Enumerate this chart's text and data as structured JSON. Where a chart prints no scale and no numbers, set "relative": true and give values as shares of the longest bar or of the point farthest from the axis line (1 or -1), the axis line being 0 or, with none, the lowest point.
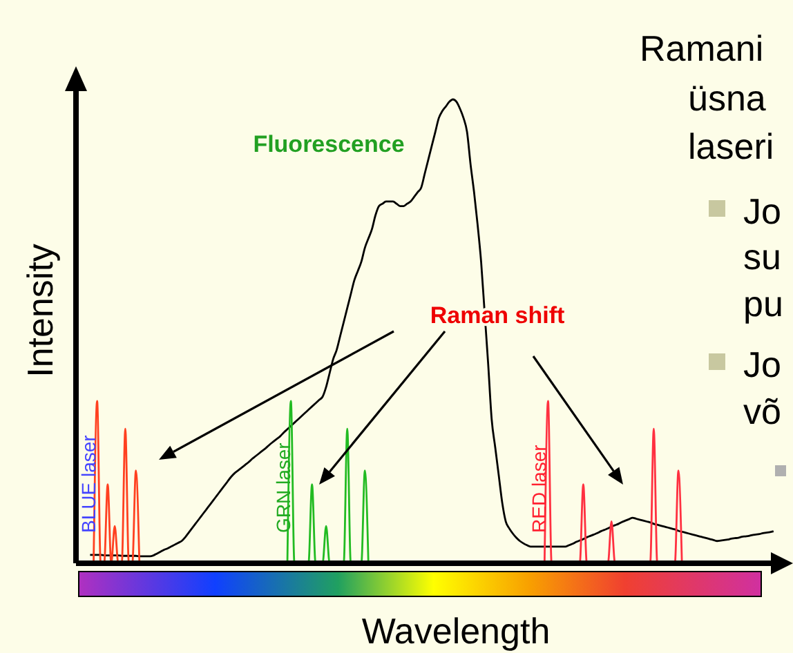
{
  "chart_data": {
    "type": "line",
    "relative": true,
    "xlabel": "Wavelength",
    "ylabel": "Intensity",
    "annotations": [
      "Fluorescence",
      "Raman shift",
      "BLUE laser",
      "GRN laser",
      "RED laser",
      "Ramani",
      "üsna",
      "laseri",
      "Jo",
      "su",
      "pu",
      "Jo",
      "võ"
    ],
    "categories": [
      null,
      null,
      null,
      null,
      null,
      null,
      null,
      null,
      null,
      null,
      null,
      null,
      null,
      null,
      null,
      null,
      null,
      null,
      null,
      null,
      null,
      null,
      null,
      null,
      null,
      null,
      null,
      null,
      null,
      null,
      null,
      null,
      null,
      null,
      null,
      null,
      null,
      null,
      null,
      null,
      null,
      null,
      null,
      null,
      null,
      null,
      null,
      null,
      null,
      null,
      null,
      null,
      null,
      null,
      null,
      null,
      null,
      null,
      null,
      null,
      null,
      null,
      null,
      null,
      null,
      null,
      null,
      null,
      null,
      null,
      null,
      null,
      null,
      null,
      null,
      null,
      null,
      null,
      null,
      null,
      null,
      null,
      null,
      null,
      null,
      null,
      null,
      null,
      null,
      null,
      null,
      null,
      null,
      null,
      null,
      null,
      null,
      null,
      null,
      null,
      null,
      null,
      null,
      null,
      null,
      null,
      null,
      null,
      null,
      null,
      null,
      null,
      null,
      null,
      null,
      null,
      null,
      null,
      null,
      null,
      null,
      null,
      null,
      null,
      null,
      null,
      null,
      null,
      null,
      null,
      null,
      null,
      null,
      null,
      null,
      null,
      null,
      null,
      null,
      null,
      null,
      null,
      null,
      null,
      null,
      null,
      null,
      null,
      null,
      null,
      null,
      null,
      null,
      null,
      null,
      null,
      null,
      null,
      null,
      null,
      null,
      null,
      null,
      null,
      null,
      null,
      null,
      null,
      null,
      null,
      null,
      null,
      null,
      null,
      null,
      null,
      null,
      null,
      null,
      null,
      null,
      null,
      null,
      null,
      null,
      null,
      null,
      null,
      null,
      null,
      null,
      null,
      null,
      null,
      null,
      null,
      null,
      null,
      null,
      null,
      null
    ],
    "series": [
      {
        "color": "#000000",
        "values": [
          null,
          null,
          null,
          null,
          0.018,
          0.018,
          0.018,
          0.018,
          0.017,
          0.017,
          0.017,
          0.017,
          0.017,
          0.016,
          0.016,
          0.016,
          0.016,
          0.016,
          0.015,
          0.015,
          0.015,
          0.015,
          0.017,
          0.021,
          0.025,
          0.029,
          0.032,
          0.036,
          0.04,
          0.044,
          0.048,
          0.056,
          0.066,
          0.076,
          0.086,
          0.096,
          0.106,
          0.116,
          0.126,
          0.136,
          0.146,
          0.156,
          0.166,
          0.176,
          0.186,
          0.194,
          0.2,
          0.206,
          0.212,
          0.218,
          0.225,
          0.231,
          0.237,
          0.243,
          0.249,
          0.256,
          0.262,
          0.268,
          0.274,
          0.282,
          0.289,
          0.296,
          0.303,
          0.31,
          0.317,
          0.324,
          0.331,
          0.338,
          0.345,
          0.352,
          0.359,
          0.38,
          0.41,
          0.44,
          0.46,
          0.49,
          0.52,
          0.55,
          0.58,
          0.61,
          0.63,
          0.65,
          0.68,
          0.7,
          0.72,
          0.75,
          0.77,
          0.775,
          0.78,
          0.78,
          0.78,
          0.775,
          0.77,
          0.77,
          0.775,
          0.78,
          0.79,
          0.8,
          0.81,
          0.84,
          0.87,
          0.9,
          0.93,
          0.96,
          0.975,
          0.985,
          0.995,
          1,
          0.995,
          0.98,
          0.96,
          0.93,
          0.86,
          0.8,
          0.73,
          0.65,
          0.54,
          0.43,
          0.31,
          0.25,
          0.19,
          0.13,
          0.09,
          0.075,
          0.064,
          0.055,
          0.048,
          0.043,
          0.039,
          0.036,
          0.036,
          0.036,
          0.036,
          0.036,
          0.036,
          0.036,
          0.036,
          0.036,
          0.036,
          0.036,
          0.039,
          0.042,
          0.046,
          0.049,
          0.052,
          0.056,
          0.059,
          0.062,
          0.065,
          0.069,
          0.072,
          0.075,
          0.079,
          0.082,
          0.085,
          0.089,
          0.092,
          0.095,
          0.098,
          0.096,
          0.094,
          0.092,
          0.09,
          0.088,
          0.085,
          0.083,
          0.081,
          0.079,
          0.077,
          0.075,
          0.073,
          0.07,
          0.068,
          0.066,
          0.064,
          0.062,
          0.06,
          0.058,
          0.056,
          0.054,
          0.052,
          0.05,
          0.048,
          0.049,
          0.05,
          0.051,
          0.053,
          0.054,
          0.055,
          0.057,
          0.058,
          0.059,
          0.061,
          0.062,
          0.063,
          0.065,
          0.066,
          0.067,
          0.069,
          null,
          null
        ]
      },
      {
        "color": "#ff4020",
        "values": [
          null,
          null,
          null,
          null,
          null,
          0,
          0.35,
          0,
          0,
          0.17,
          0,
          0.08,
          0,
          0,
          0.29,
          0,
          0,
          0.2,
          0,
          null,
          null,
          null,
          null,
          null,
          null,
          null,
          null,
          null,
          null,
          null,
          null,
          null,
          null,
          null,
          null,
          null,
          null,
          null,
          null,
          null,
          null,
          null,
          null,
          null,
          null,
          null,
          null,
          null,
          null,
          null,
          null,
          null,
          null,
          null,
          null,
          null,
          null,
          null,
          null,
          null,
          null,
          null,
          null,
          null,
          null,
          null,
          null,
          null,
          null,
          null,
          null,
          null,
          null,
          null,
          null,
          null,
          null,
          null,
          null,
          null,
          null,
          null,
          null,
          null,
          null,
          null,
          null,
          null,
          null,
          null,
          null,
          null,
          null,
          null,
          null,
          null,
          null,
          null,
          null,
          null,
          null,
          null,
          null,
          null,
          null,
          null,
          null,
          null,
          null,
          null,
          null,
          null,
          null,
          null,
          null,
          null,
          null,
          null,
          null,
          null,
          null,
          null,
          null,
          null,
          null,
          null,
          null,
          null,
          null,
          null,
          null,
          null,
          null,
          null,
          null,
          null,
          null,
          null,
          null,
          null,
          null,
          null,
          null,
          null,
          null,
          null,
          null,
          null,
          null,
          null,
          null,
          null,
          null,
          null,
          null,
          null,
          null,
          null,
          null,
          null,
          null,
          null,
          null,
          null,
          null,
          null,
          null,
          null,
          null,
          null,
          null,
          null,
          null,
          null,
          null,
          null,
          null,
          null,
          null,
          null,
          null,
          null,
          null,
          null,
          null,
          null,
          null,
          null,
          null,
          null,
          null,
          null,
          null,
          null,
          null,
          null,
          null,
          null,
          null,
          null,
          null
        ]
      },
      {
        "color": "#22bb22",
        "values": [
          null,
          null,
          null,
          null,
          null,
          null,
          null,
          null,
          null,
          null,
          null,
          null,
          null,
          null,
          null,
          null,
          null,
          null,
          null,
          null,
          null,
          null,
          null,
          null,
          null,
          null,
          null,
          null,
          null,
          null,
          null,
          null,
          null,
          null,
          null,
          null,
          null,
          null,
          null,
          null,
          null,
          null,
          null,
          null,
          null,
          null,
          null,
          null,
          null,
          null,
          null,
          null,
          null,
          null,
          null,
          null,
          null,
          null,
          null,
          null,
          0,
          0.35,
          0,
          0,
          0,
          0,
          0,
          0.17,
          0,
          0,
          0,
          0.08,
          0,
          0,
          0,
          0,
          0,
          0.29,
          0,
          0,
          0,
          0,
          0.2,
          0,
          null,
          null,
          null,
          null,
          null,
          null,
          null,
          null,
          null,
          null,
          null,
          null,
          null,
          null,
          null,
          null,
          null,
          null,
          null,
          null,
          null,
          null,
          null,
          null,
          null,
          null,
          null,
          null,
          null,
          null,
          null,
          null,
          null,
          null,
          null,
          null,
          null,
          null,
          null,
          null,
          null,
          null,
          null,
          null,
          null,
          null,
          null,
          null,
          null,
          null,
          null,
          null,
          null,
          null,
          null,
          null,
          null,
          null,
          null,
          null,
          null,
          null,
          null,
          null,
          null,
          null,
          null,
          null,
          null,
          null,
          null,
          null,
          null,
          null,
          null,
          null,
          null,
          null,
          null,
          null,
          null,
          null,
          null,
          null,
          null,
          null,
          null,
          null,
          null,
          null,
          null,
          null,
          null,
          null,
          null,
          null,
          null,
          null,
          null,
          null,
          null,
          null,
          null,
          null,
          null,
          null,
          null,
          null,
          null,
          null,
          null,
          null,
          null,
          null,
          null,
          null,
          null
        ]
      },
      {
        "color": "#ff3040",
        "values": [
          null,
          null,
          null,
          null,
          null,
          null,
          null,
          null,
          null,
          null,
          null,
          null,
          null,
          null,
          null,
          null,
          null,
          null,
          null,
          null,
          null,
          null,
          null,
          null,
          null,
          null,
          null,
          null,
          null,
          null,
          null,
          null,
          null,
          null,
          null,
          null,
          null,
          null,
          null,
          null,
          null,
          null,
          null,
          null,
          null,
          null,
          null,
          null,
          null,
          null,
          null,
          null,
          null,
          null,
          null,
          null,
          null,
          null,
          null,
          null,
          null,
          null,
          null,
          null,
          null,
          null,
          null,
          null,
          null,
          null,
          null,
          null,
          null,
          null,
          null,
          null,
          null,
          null,
          null,
          null,
          null,
          null,
          null,
          null,
          null,
          null,
          null,
          null,
          null,
          null,
          null,
          null,
          null,
          null,
          null,
          null,
          null,
          null,
          null,
          null,
          null,
          null,
          null,
          null,
          null,
          null,
          null,
          null,
          null,
          null,
          null,
          null,
          null,
          null,
          null,
          null,
          null,
          null,
          null,
          null,
          null,
          null,
          null,
          null,
          null,
          null,
          null,
          null,
          null,
          null,
          null,
          null,
          null,
          0,
          0.35,
          0,
          0,
          0,
          0,
          0,
          0,
          0,
          0,
          0,
          0.17,
          0,
          0,
          0,
          0,
          0,
          0,
          0,
          0.09,
          0,
          0,
          0,
          0,
          0,
          0,
          0,
          0,
          0,
          0,
          0,
          0.29,
          0,
          0,
          0,
          0,
          0,
          0,
          0.2,
          0,
          null,
          null,
          null,
          null,
          null,
          null,
          null,
          null,
          null,
          null,
          null,
          null,
          null,
          null,
          null,
          null,
          null,
          null,
          null,
          null,
          null,
          null,
          null,
          null,
          null,
          null,
          null,
          null
        ]
      }
    ]
  }
}
